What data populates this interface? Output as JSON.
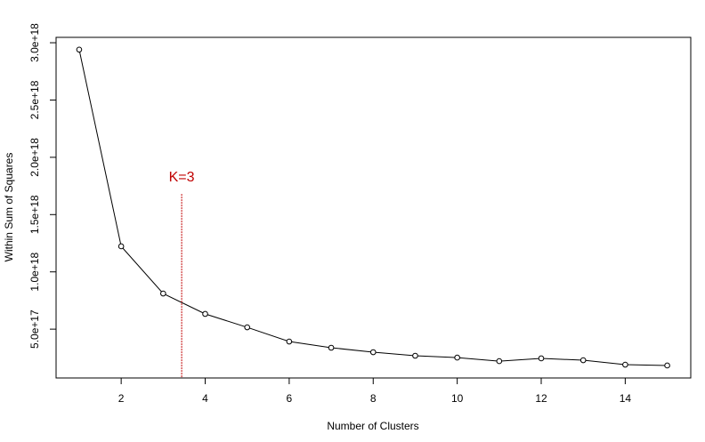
{
  "chart_data": {
    "type": "line",
    "x_label": "Number of Clusters",
    "y_label": "Within Sum of Squares",
    "x": [
      1,
      2,
      3,
      4,
      5,
      6,
      7,
      8,
      9,
      10,
      11,
      12,
      13,
      14,
      15
    ],
    "values": [
      2.94e+18,
      1.223e+18,
      8.11e+17,
      6.33e+17,
      5.16e+17,
      3.92e+17,
      3.38e+17,
      2.99e+17,
      2.68e+17,
      2.52e+17,
      2.21e+17,
      2.45e+17,
      2.29e+17,
      1.9e+17,
      1.83e+17
    ],
    "color": "#000000",
    "xlim": [
      0.45,
      15.56
    ],
    "xticks": [
      2,
      4,
      6,
      8,
      10,
      12,
      14
    ],
    "ylim": [
      7.4e+16,
      3.047e+18
    ],
    "yticks": [
      {
        "value": 5e+17,
        "label": "5.0e+17"
      },
      {
        "value": 1e+18,
        "label": "1.0e+18"
      },
      {
        "value": 1.5e+18,
        "label": "1.5e+18"
      },
      {
        "value": 2e+18,
        "label": "2.0e+18"
      },
      {
        "value": 2.5e+18,
        "label": "2.5e+18"
      },
      {
        "value": 3e+18,
        "label": "3.0e+18"
      }
    ],
    "annotation": {
      "text": "K=3",
      "x": 3.44,
      "y": 1.68e+18,
      "color": "#c00000"
    }
  }
}
